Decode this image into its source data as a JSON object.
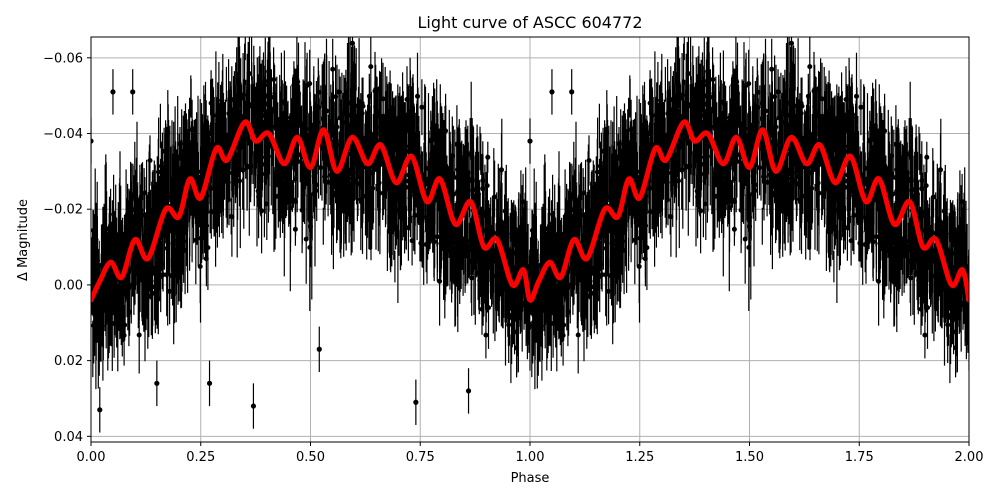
{
  "chart_data": {
    "type": "scatter",
    "title": "Light curve of ASCC 604772",
    "xlabel": "Phase",
    "ylabel": "Δ Magnitude",
    "xlim": [
      0.0,
      2.0
    ],
    "ylim": [
      0.0415,
      -0.0655
    ],
    "y_inverted": true,
    "grid": true,
    "x_ticks": [
      0.0,
      0.25,
      0.5,
      0.75,
      1.0,
      1.25,
      1.5,
      1.75,
      2.0
    ],
    "x_tick_labels": [
      "0.00",
      "0.25",
      "0.50",
      "0.75",
      "1.00",
      "1.25",
      "1.50",
      "1.75",
      "2.00"
    ],
    "y_ticks": [
      -0.06,
      -0.04,
      -0.02,
      0.0,
      0.02,
      0.04
    ],
    "y_tick_labels": [
      "−0.06",
      "−0.04",
      "−0.02",
      "0.00",
      "0.02",
      "0.04"
    ],
    "series": [
      {
        "name": "observations",
        "kind": "errorbar-scatter",
        "color": "#000000",
        "description": "Dense phase-folded photometry with error bars, scattered roughly ±0.03 mag around the model; repeated for phase 1–2",
        "sample_points": [
          {
            "x": 0.0,
            "y": -0.038
          },
          {
            "x": 0.05,
            "y": -0.051
          },
          {
            "x": 0.095,
            "y": -0.051
          },
          {
            "x": 0.565,
            "y": -0.051
          },
          {
            "x": 0.02,
            "y": 0.033
          },
          {
            "x": 0.15,
            "y": 0.026
          },
          {
            "x": 0.27,
            "y": 0.026
          },
          {
            "x": 0.37,
            "y": 0.032
          },
          {
            "x": 0.52,
            "y": 0.017
          },
          {
            "x": 0.74,
            "y": 0.031
          },
          {
            "x": 0.86,
            "y": 0.028
          },
          {
            "x": 1.0,
            "y": -0.038
          },
          {
            "x": 1.05,
            "y": -0.051
          },
          {
            "x": 1.095,
            "y": -0.051
          },
          {
            "x": 1.565,
            "y": -0.051
          }
        ]
      },
      {
        "name": "model fit",
        "kind": "line",
        "color": "#ff0000",
        "linewidth": 5,
        "x": [
          0.0,
          0.02,
          0.045,
          0.07,
          0.1,
          0.13,
          0.17,
          0.2,
          0.225,
          0.25,
          0.285,
          0.31,
          0.35,
          0.375,
          0.405,
          0.44,
          0.47,
          0.5,
          0.53,
          0.56,
          0.595,
          0.63,
          0.66,
          0.695,
          0.73,
          0.765,
          0.795,
          0.83,
          0.865,
          0.895,
          0.925,
          0.96,
          0.985,
          1.0,
          1.02,
          1.045,
          1.07,
          1.1,
          1.13,
          1.17,
          1.2,
          1.225,
          1.25,
          1.285,
          1.31,
          1.35,
          1.375,
          1.405,
          1.44,
          1.47,
          1.5,
          1.53,
          1.56,
          1.595,
          1.63,
          1.66,
          1.695,
          1.73,
          1.765,
          1.795,
          1.83,
          1.865,
          1.895,
          1.925,
          1.96,
          1.985,
          2.0
        ],
        "y": [
          0.004,
          -0.001,
          -0.006,
          -0.002,
          -0.012,
          -0.007,
          -0.02,
          -0.018,
          -0.028,
          -0.023,
          -0.036,
          -0.033,
          -0.043,
          -0.038,
          -0.04,
          -0.032,
          -0.039,
          -0.031,
          -0.041,
          -0.03,
          -0.039,
          -0.032,
          -0.037,
          -0.027,
          -0.034,
          -0.022,
          -0.028,
          -0.016,
          -0.022,
          -0.01,
          -0.012,
          0.0,
          -0.004,
          0.004,
          -0.001,
          -0.006,
          -0.002,
          -0.012,
          -0.007,
          -0.02,
          -0.018,
          -0.028,
          -0.023,
          -0.036,
          -0.033,
          -0.043,
          -0.038,
          -0.04,
          -0.032,
          -0.039,
          -0.031,
          -0.041,
          -0.03,
          -0.039,
          -0.032,
          -0.037,
          -0.027,
          -0.034,
          -0.022,
          -0.028,
          -0.016,
          -0.022,
          -0.01,
          -0.012,
          0.0,
          -0.004,
          0.004
        ]
      }
    ]
  },
  "colors": {
    "data": "#000000",
    "model": "#ff0000",
    "grid": "#b0b0b0",
    "axes": "#000000"
  }
}
